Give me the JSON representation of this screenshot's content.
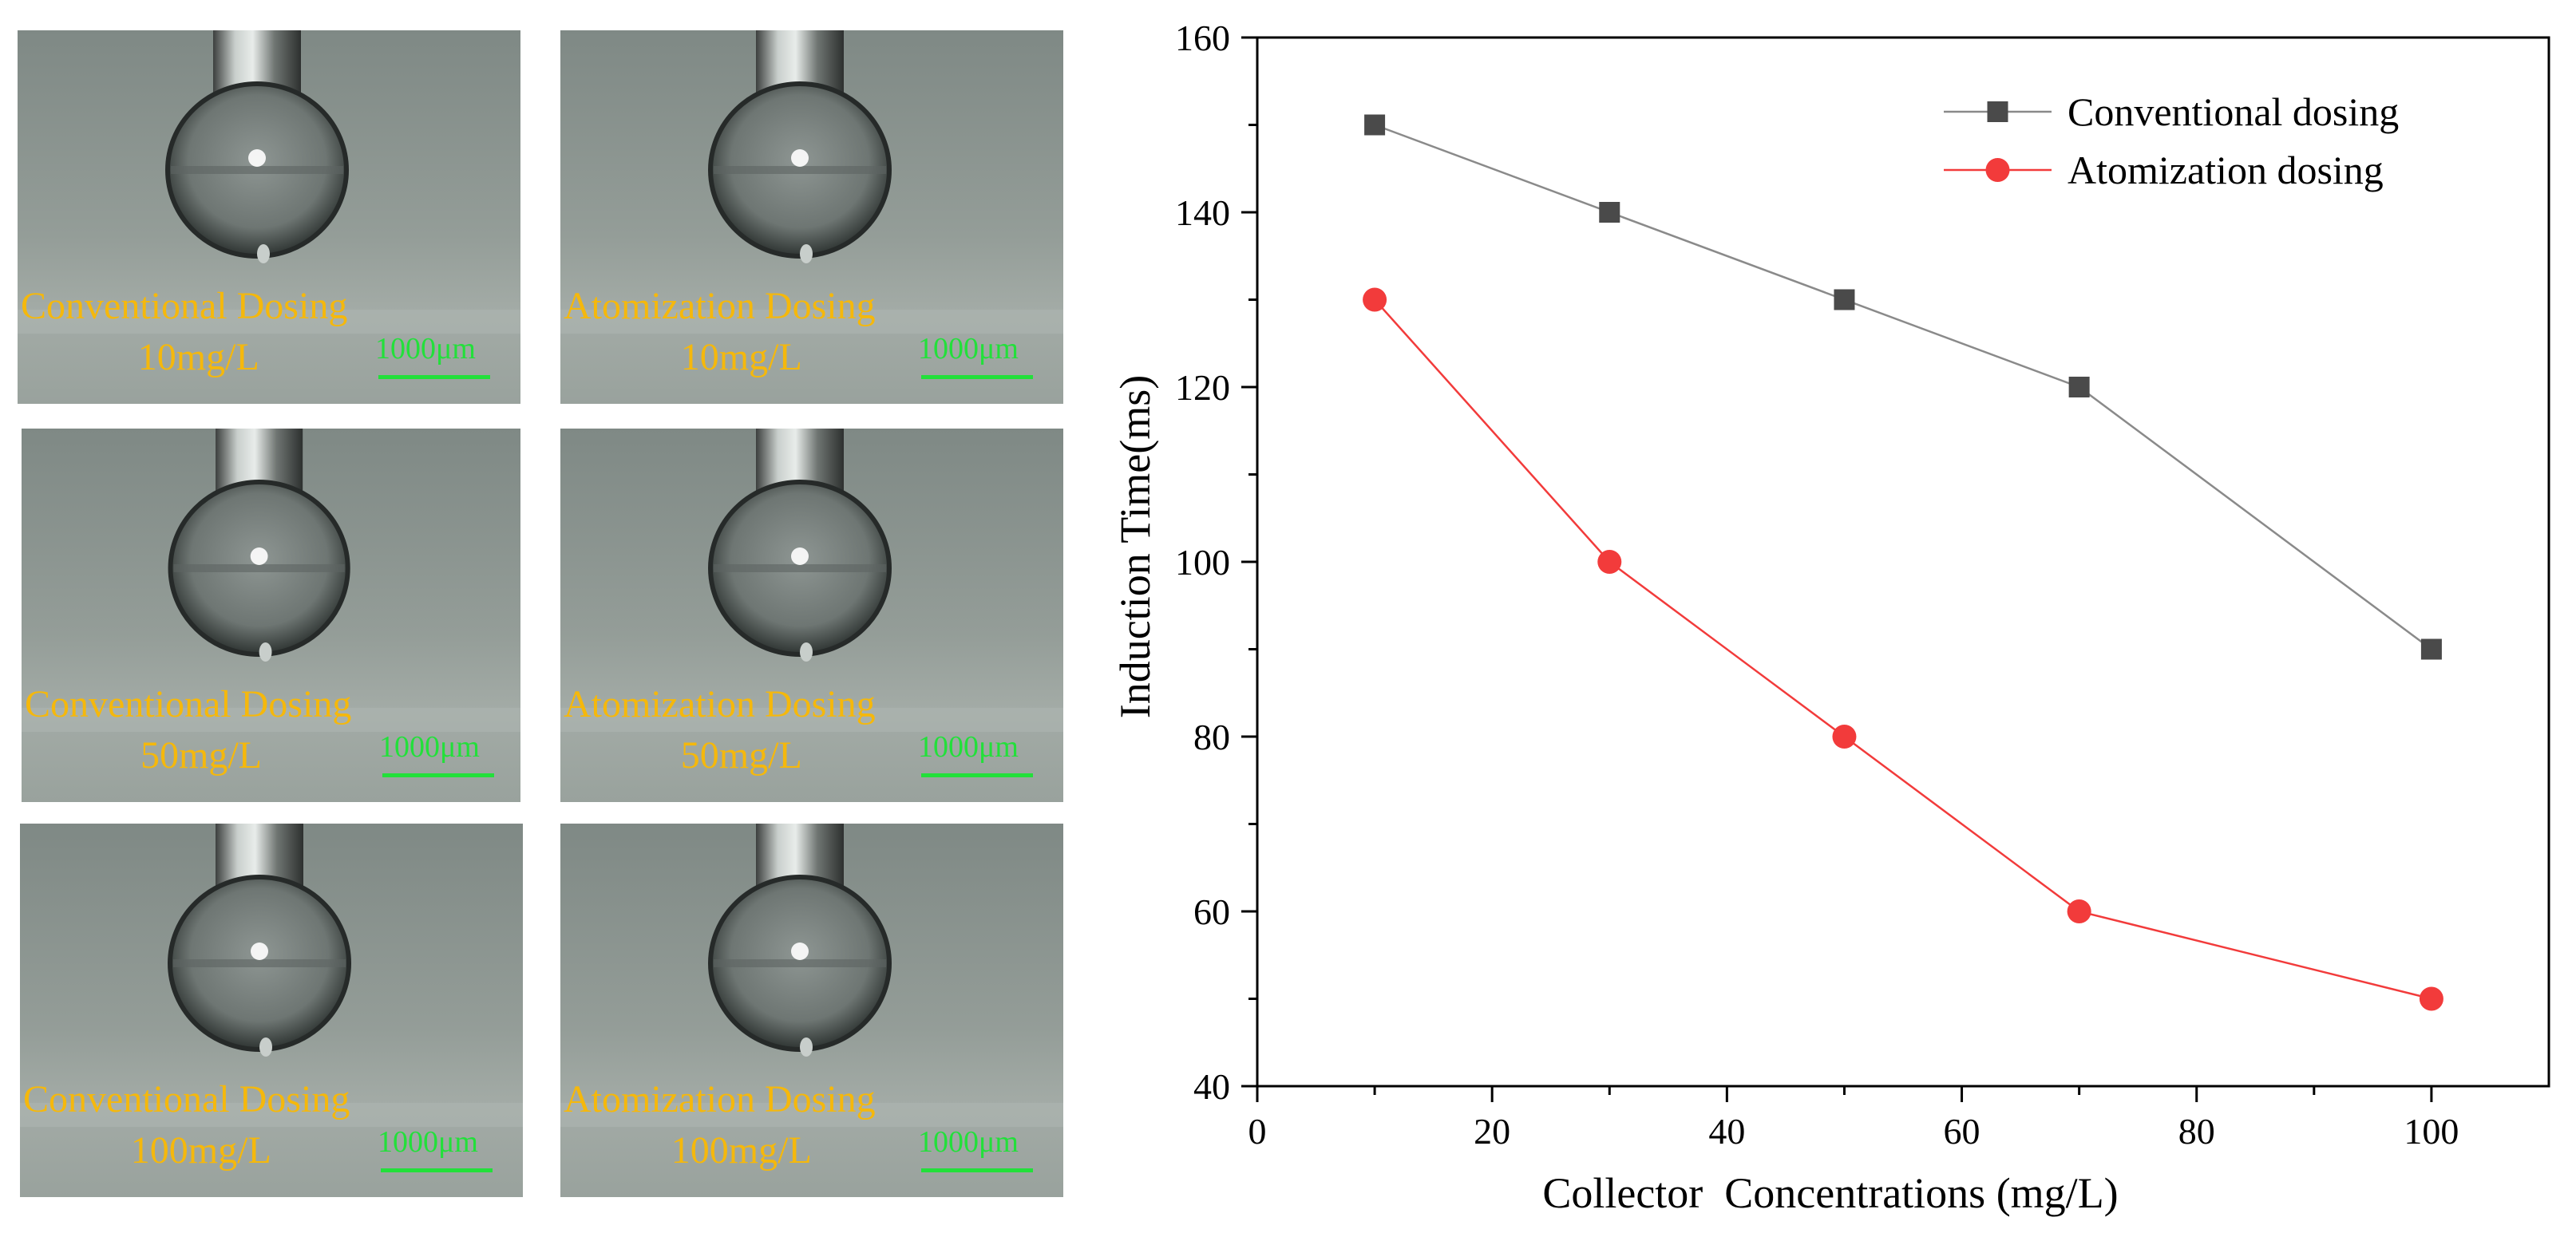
{
  "panels": [
    {
      "method": "Conventional Dosing",
      "concentration": "10mg/L",
      "scale": "1000μm"
    },
    {
      "method": "Atomization Dosing",
      "concentration": "10mg/L",
      "scale": "1000μm"
    },
    {
      "method": "Conventional Dosing",
      "concentration": "50mg/L",
      "scale": "1000μm"
    },
    {
      "method": "Atomization Dosing",
      "concentration": "50mg/L",
      "scale": "1000μm"
    },
    {
      "method": "Conventional Dosing",
      "concentration": "100mg/L",
      "scale": "1000μm"
    },
    {
      "method": "Atomization Dosing",
      "concentration": "100mg/L",
      "scale": "1000μm"
    }
  ],
  "chart_data": {
    "type": "line",
    "title": "",
    "xlabel": "Collector  Concentrations (mg/L)",
    "ylabel": "Induction Time(ms)",
    "xlim": [
      0,
      110
    ],
    "ylim": [
      40,
      160
    ],
    "xticks": [
      0,
      20,
      40,
      60,
      80,
      100
    ],
    "yticks": [
      40,
      60,
      80,
      100,
      120,
      140,
      160
    ],
    "x": [
      10,
      30,
      50,
      70,
      100
    ],
    "series": [
      {
        "name": "Conventional dosing",
        "values": [
          150,
          140,
          130,
          120,
          90
        ],
        "color": "#4a4a4a",
        "line_color": "#8a8a8a",
        "marker": "square"
      },
      {
        "name": "Atomization dosing",
        "values": [
          130,
          100,
          80,
          60,
          50
        ],
        "color": "#f23b3b",
        "line_color": "#f23b3b",
        "marker": "circle"
      }
    ],
    "grid": false,
    "legend": "top-right"
  }
}
